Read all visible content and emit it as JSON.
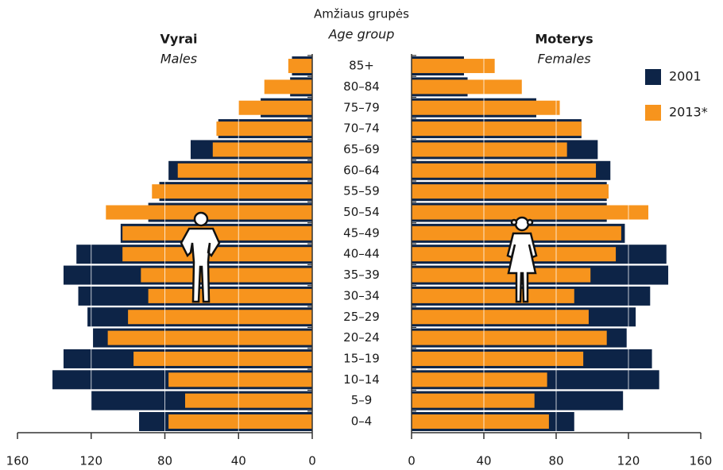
{
  "chart_data": {
    "type": "pyramid",
    "axis_title": "Amžiaus grupės",
    "axis_subtitle": "Age group",
    "left_title": "Vyrai",
    "left_subtitle": "Males",
    "right_title": "Moterys",
    "right_subtitle": "Females",
    "categories": [
      "0–4",
      "5–9",
      "10–14",
      "15–19",
      "20–24",
      "25–29",
      "30–34",
      "35–39",
      "40–44",
      "45–49",
      "50–54",
      "55–59",
      "60–64",
      "65–69",
      "70–74",
      "75–79",
      "80–84",
      "85+"
    ],
    "series": [
      {
        "name": "2001",
        "color": "#0d2447",
        "males": [
          94,
          120,
          141,
          135,
          119,
          122,
          127,
          135,
          128,
          104,
          89,
          83,
          78,
          66,
          51,
          28,
          12,
          11
        ],
        "females": [
          90,
          117,
          137,
          133,
          119,
          124,
          132,
          142,
          141,
          118,
          108,
          108,
          110,
          103,
          94,
          69,
          31,
          29
        ]
      },
      {
        "name": "2013*",
        "color": "#f7941d",
        "males": [
          78,
          69,
          78,
          97,
          111,
          100,
          89,
          93,
          103,
          103,
          112,
          87,
          73,
          54,
          52,
          40,
          26,
          13
        ],
        "females": [
          76,
          68,
          75,
          95,
          108,
          98,
          90,
          99,
          113,
          116,
          131,
          109,
          102,
          86,
          94,
          82,
          61,
          46
        ]
      }
    ],
    "xlim": [
      0,
      160
    ],
    "xticks": [
      0,
      40,
      80,
      120,
      160
    ],
    "grid": true,
    "legend": "right"
  }
}
